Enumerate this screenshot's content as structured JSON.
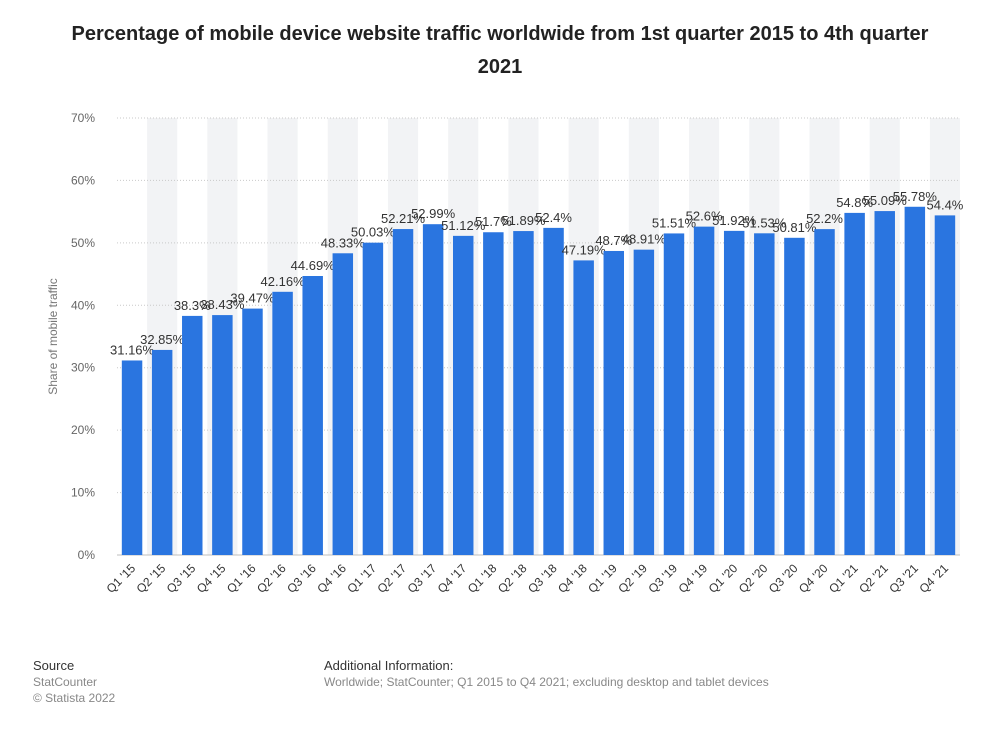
{
  "chart_data": {
    "type": "bar",
    "title": "Percentage of mobile device website traffic worldwide from 1st quarter 2015 to 4th quarter 2021",
    "ylabel": "Share of mobile traffic",
    "xlabel": "",
    "ylim": [
      0,
      70
    ],
    "yticks": [
      "0%",
      "10%",
      "20%",
      "30%",
      "40%",
      "50%",
      "60%",
      "70%"
    ],
    "grid": true,
    "bar_color": "#2a75e0",
    "band_color": "#f2f3f5",
    "categories": [
      "Q1 '15",
      "Q2 '15",
      "Q3 '15",
      "Q4 '15",
      "Q1 '16",
      "Q2 '16",
      "Q3 '16",
      "Q4 '16",
      "Q1 '17",
      "Q2 '17",
      "Q3 '17",
      "Q4 '17",
      "Q1 '18",
      "Q2 '18",
      "Q3 '18",
      "Q4 '18",
      "Q1 '19",
      "Q2 '19",
      "Q3 '19",
      "Q4 '19",
      "Q1 '20",
      "Q2 '20",
      "Q3 '20",
      "Q4 '20",
      "Q1 '21",
      "Q2 '21",
      "Q3 '21",
      "Q4 '21"
    ],
    "values": [
      31.16,
      32.85,
      38.3,
      38.43,
      39.47,
      42.16,
      44.69,
      48.33,
      50.03,
      52.21,
      52.99,
      51.12,
      51.7,
      51.89,
      52.4,
      47.19,
      48.7,
      48.91,
      51.51,
      52.6,
      51.92,
      51.53,
      50.81,
      52.2,
      54.8,
      55.09,
      55.78,
      54.4
    ],
    "data_labels": [
      "31.16%",
      "32.85%",
      "38.3%",
      "38.43%",
      "39.47%",
      "42.16%",
      "44.69%",
      "48.33%",
      "50.03%",
      "52.21%",
      "52.99%",
      "51.12%",
      "51.7%",
      "51.89%",
      "52.4%",
      "47.19%",
      "48.7%",
      "48.91%",
      "51.51%",
      "52.6%",
      "51.92%",
      "51.53%",
      "50.81%",
      "52.2%",
      "54.8%",
      "55.09%",
      "55.78%",
      "54.4%"
    ]
  },
  "footer": {
    "source_heading": "Source",
    "source_name": "StatCounter",
    "copyright": "© Statista 2022",
    "info_heading": "Additional Information:",
    "info_text": "Worldwide; StatCounter; Q1 2015 to Q4 2021; excluding desktop and tablet devices"
  }
}
